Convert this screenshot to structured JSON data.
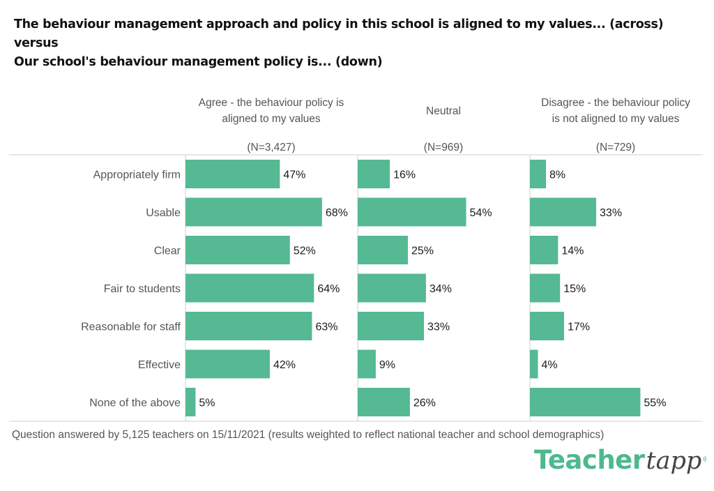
{
  "title": {
    "line1": "The behaviour management approach and policy in this school is aligned to my values... (across)",
    "line2": "versus",
    "line3": "Our school's behaviour management policy is... (down)"
  },
  "footnote": "Question answered by 5,125 teachers on 15/11/2021 (results weighted to reflect national teacher and school demographics)",
  "brand": {
    "part1": "Teacher",
    "part2": "tapp"
  },
  "colors": {
    "bar": "#55b993",
    "grid": "#cfcfcf",
    "label": "#555555",
    "value": "#1a1a1a"
  },
  "chart_data": {
    "type": "bar",
    "orientation": "horizontal",
    "layout": "small-multiples",
    "categories": [
      "Appropriately firm",
      "Usable",
      "Clear",
      "Fair to students",
      "Reasonable for staff",
      "Effective",
      "None of the above"
    ],
    "series": [
      {
        "name": "Agree - the behaviour policy is aligned to my values",
        "header_lines": [
          "Agree - the behaviour policy is",
          "aligned to my values"
        ],
        "n_label": "(N=3,427)",
        "values": [
          47,
          68,
          52,
          64,
          63,
          42,
          5
        ]
      },
      {
        "name": "Neutral",
        "header_lines": [
          "Neutral"
        ],
        "n_label": "(N=969)",
        "values": [
          16,
          54,
          25,
          34,
          33,
          9,
          26
        ]
      },
      {
        "name": "Disagree - the behaviour policy is not aligned to my values",
        "header_lines": [
          "Disagree - the behaviour policy",
          "is not aligned to my values"
        ],
        "n_label": "(N=729)",
        "values": [
          8,
          33,
          14,
          15,
          17,
          4,
          55
        ]
      }
    ],
    "value_format": "percent",
    "xlim": [
      0,
      100
    ],
    "legend": "none"
  }
}
